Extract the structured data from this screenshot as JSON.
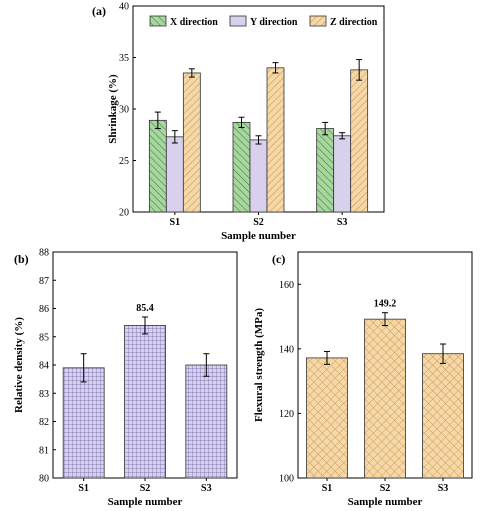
{
  "chart_data": [
    {
      "panel": "(a)",
      "type": "bar",
      "categories": [
        "S1",
        "S2",
        "S3"
      ],
      "series": [
        {
          "name": "X direction",
          "values": [
            28.9,
            28.7,
            28.1
          ],
          "errors": [
            0.8,
            0.5,
            0.6
          ],
          "color": "#a8d5a0",
          "pattern": "diag-left"
        },
        {
          "name": "Y direction",
          "values": [
            27.3,
            27.0,
            27.4
          ],
          "errors": [
            0.6,
            0.4,
            0.3
          ],
          "color": "#d8d0ec",
          "pattern": "none"
        },
        {
          "name": "Z direction",
          "values": [
            33.5,
            34.0,
            33.8
          ],
          "errors": [
            0.4,
            0.5,
            1.0
          ],
          "color": "#f6d8a8",
          "pattern": "diag-right"
        }
      ],
      "xlabel": "Sample number",
      "ylabel": "Shrinkage (%)",
      "ylim": [
        20,
        40
      ],
      "yticks": [
        20,
        25,
        30,
        35,
        40
      ],
      "legend": "top"
    },
    {
      "panel": "(b)",
      "type": "bar",
      "categories": [
        "S1",
        "S2",
        "S3"
      ],
      "values": [
        83.9,
        85.4,
        84.0
      ],
      "errors": [
        0.5,
        0.3,
        0.4
      ],
      "data_labels": [
        "",
        "85.4",
        ""
      ],
      "color": "#d8d0ec",
      "pattern": "grid",
      "xlabel": "Sample number",
      "ylabel": "Relative density (%)",
      "ylim": [
        80,
        88
      ],
      "yticks": [
        80,
        81,
        82,
        83,
        84,
        85,
        86,
        87,
        88
      ]
    },
    {
      "panel": "(c)",
      "type": "bar",
      "categories": [
        "S1",
        "S2",
        "S3"
      ],
      "values": [
        137.2,
        149.2,
        138.5
      ],
      "errors": [
        2.0,
        2.0,
        3.0
      ],
      "data_labels": [
        "",
        "149.2",
        ""
      ],
      "color": "#f6d8a8",
      "pattern": "crosshatch",
      "xlabel": "Sample number",
      "ylabel": "Flexural strength (MPa)",
      "ylim": [
        100,
        170
      ],
      "yticks": [
        100,
        120,
        140,
        160
      ]
    }
  ]
}
